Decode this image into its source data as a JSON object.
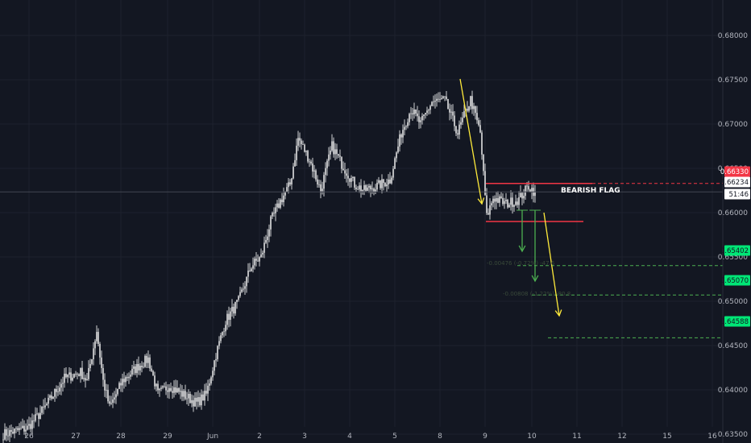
{
  "chart_data": {
    "type": "candlestick",
    "symbol": "",
    "theme": {
      "background": "#131722",
      "candle_up": "#ffffff",
      "candle_down": "#ffffff",
      "grid": "#1e222d",
      "axis_text": "#b2b5be",
      "resistance_line": "#f23645",
      "target_line": "#4caf50",
      "arrow_yellow": "#ffeb3b",
      "arrow_green": "#4caf50",
      "price_line": "#434651"
    },
    "ylim": [
      0.634,
      0.684
    ],
    "y_ticks": [
      "0.68000",
      "0.67500",
      "0.67000",
      "0.66500",
      "0.66000",
      "0.65500",
      "0.65000",
      "0.64500",
      "0.64000",
      "0.63500"
    ],
    "y_tick_values": [
      0.68,
      0.675,
      0.67,
      0.665,
      0.66,
      0.655,
      0.65,
      0.645,
      0.64,
      0.635
    ],
    "x_ticks": [
      "26",
      "27",
      "28",
      "29",
      "Jun",
      "2",
      "3",
      "4",
      "5",
      "8",
      "9",
      "10",
      "11",
      "12",
      "15",
      "16"
    ],
    "x_tick_index": [
      16,
      45,
      73,
      102,
      130,
      159,
      187,
      215,
      243,
      271,
      299,
      328,
      356,
      384,
      412,
      440
    ],
    "price_badges": [
      {
        "label": "0.66330",
        "value": 0.6633,
        "bg": "#f23645",
        "fg": "#ffffff"
      },
      {
        "label": "0.66234",
        "value": 0.66234,
        "bg": "#ffffff",
        "fg": "#131722"
      },
      {
        "label": "51:46",
        "value": 0.6611,
        "bg": "#ffffff",
        "fg": "#131722"
      },
      {
        "label": "0.65402",
        "value": 0.65402,
        "bg": "#00e676",
        "fg": "#131722"
      },
      {
        "label": "0.65070",
        "value": 0.6507,
        "bg": "#00e676",
        "fg": "#131722"
      },
      {
        "label": "0.64588",
        "value": 0.64588,
        "bg": "#00e676",
        "fg": "#131722"
      }
    ],
    "annotations": {
      "pattern_label": "BEARISH FLAG",
      "measure_1": "-0.00476 (-0.72%) -47.6",
      "measure_2": "-0.00808 (-1.22%) -80.8"
    },
    "flag": {
      "top": 0.6633,
      "bottom": 0.659
    },
    "targets": [
      0.65402,
      0.6507,
      0.64588
    ],
    "anchor_points": [
      [
        0,
        0.635
      ],
      [
        15,
        0.6357
      ],
      [
        25,
        0.6378
      ],
      [
        38,
        0.6413
      ],
      [
        48,
        0.642
      ],
      [
        52,
        0.641
      ],
      [
        58,
        0.6467
      ],
      [
        62,
        0.641
      ],
      [
        66,
        0.638
      ],
      [
        74,
        0.641
      ],
      [
        84,
        0.6427
      ],
      [
        90,
        0.6435
      ],
      [
        96,
        0.6395
      ],
      [
        103,
        0.6405
      ],
      [
        113,
        0.6393
      ],
      [
        120,
        0.6385
      ],
      [
        126,
        0.6395
      ],
      [
        132,
        0.644
      ],
      [
        138,
        0.6478
      ],
      [
        146,
        0.65
      ],
      [
        154,
        0.654
      ],
      [
        160,
        0.655
      ],
      [
        166,
        0.659
      ],
      [
        172,
        0.6613
      ],
      [
        178,
        0.6632
      ],
      [
        183,
        0.6684
      ],
      [
        190,
        0.666
      ],
      [
        197,
        0.6625
      ],
      [
        204,
        0.6675
      ],
      [
        210,
        0.6655
      ],
      [
        218,
        0.6632
      ],
      [
        224,
        0.6625
      ],
      [
        232,
        0.663
      ],
      [
        240,
        0.6637
      ],
      [
        247,
        0.669
      ],
      [
        253,
        0.6717
      ],
      [
        259,
        0.67
      ],
      [
        266,
        0.6725
      ],
      [
        274,
        0.6727
      ],
      [
        282,
        0.669
      ],
      [
        290,
        0.6728
      ],
      [
        296,
        0.669
      ],
      [
        300,
        0.6595
      ],
      [
        304,
        0.6617
      ],
      [
        312,
        0.661
      ],
      [
        320,
        0.6615
      ],
      [
        326,
        0.663
      ],
      [
        330,
        0.6623
      ]
    ]
  }
}
